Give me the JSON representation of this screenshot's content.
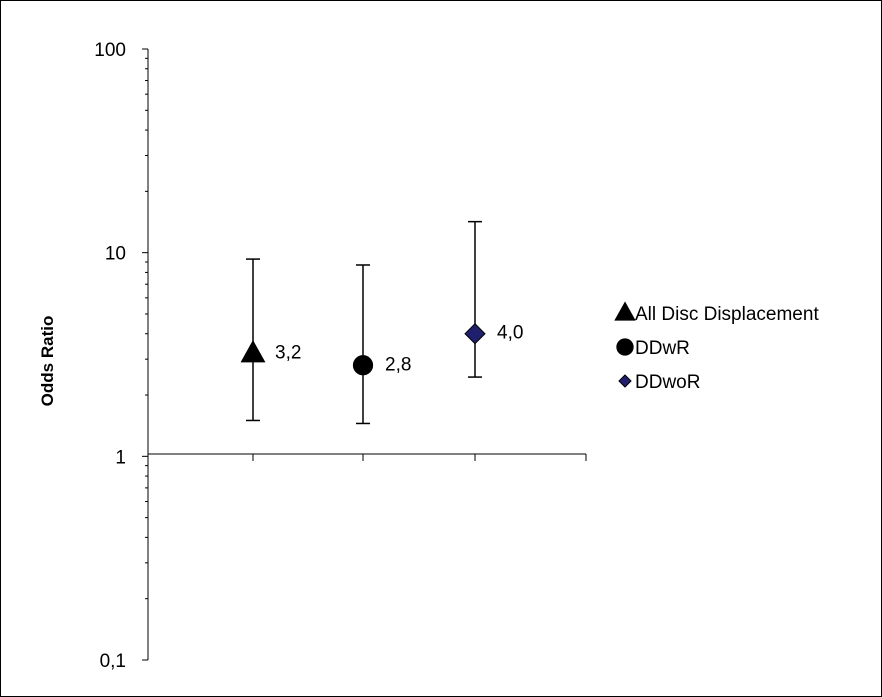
{
  "chart_data": {
    "type": "scatter",
    "yscale": "log",
    "ylim": [
      0.1,
      100
    ],
    "ylabel": "Odds Ratio",
    "ytick_labels": [
      "0,1",
      "1",
      "10",
      "100"
    ],
    "yticks": [
      0.1,
      1,
      10,
      100
    ],
    "series": [
      {
        "name": "All Disc Displacement",
        "marker": "triangle",
        "color": "#000000",
        "x": 1,
        "y": 3.2,
        "lower": 1.5,
        "upper": 9.3,
        "label": "3,2"
      },
      {
        "name": "DDwR",
        "marker": "circle",
        "color": "#000000",
        "x": 2,
        "y": 2.8,
        "lower": 1.45,
        "upper": 8.7,
        "label": "2,8"
      },
      {
        "name": "DDwoR",
        "marker": "diamond",
        "color": "#1f1f6e",
        "x": 3,
        "y": 4.0,
        "lower": 2.45,
        "upper": 14.2,
        "label": "4,0"
      }
    ],
    "legend_position": "right",
    "grid": false
  }
}
